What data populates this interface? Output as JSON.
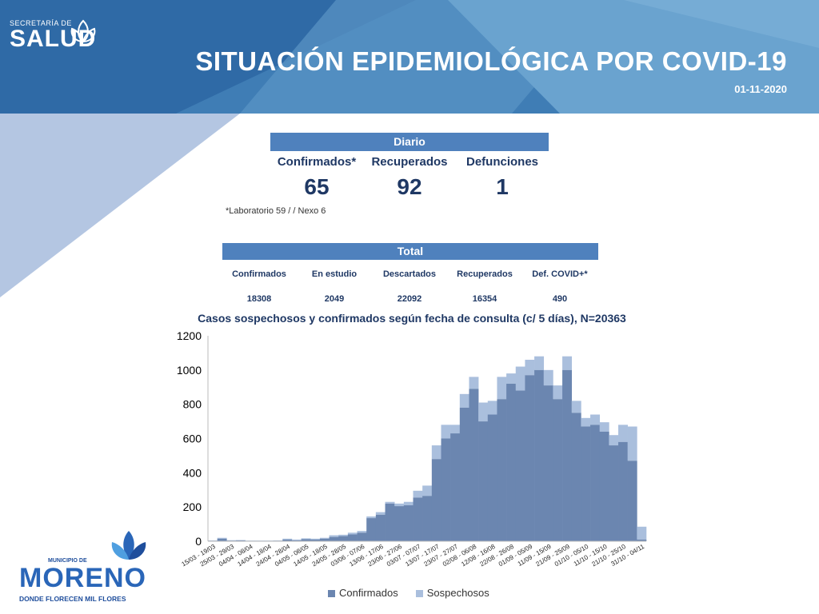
{
  "header": {
    "brand_top": "SECRETARÍA DE",
    "brand_name": "SALUD",
    "title": "SITUACIÓN EPIDEMIOLÓGICA POR COVID-19",
    "date": "01-11-2020"
  },
  "colors": {
    "header_blue": "#4a86b8",
    "section_bar": "#4f81bd",
    "confirmados": "#6b86b0",
    "sospechosos": "#aabfdd",
    "text_dark": "#1f3864"
  },
  "daily": {
    "heading": "Diario",
    "cols": [
      {
        "label": "Confirmados*",
        "value": "65"
      },
      {
        "label": "Recuperados",
        "value": "92"
      },
      {
        "label": "Defunciones",
        "value": "1"
      }
    ],
    "footnote": "*Laboratorio 59 / / Nexo 6"
  },
  "total": {
    "heading": "Total",
    "cols": [
      {
        "label": "Confirmados",
        "value": "18308"
      },
      {
        "label": "En estudio",
        "value": "2049"
      },
      {
        "label": "Descartados",
        "value": "22092"
      },
      {
        "label": "Recuperados",
        "value": "16354"
      },
      {
        "label": "Def. COVID+*",
        "value": "490"
      }
    ]
  },
  "chart_data": {
    "type": "area",
    "stacked": true,
    "title": "Casos sospechosos y confirmados según fecha de consulta (c/ 5 días), N=20363",
    "xlabel": "",
    "ylabel": "",
    "ylim": [
      0,
      1200
    ],
    "yticks": [
      0,
      200,
      400,
      600,
      800,
      1000,
      1200
    ],
    "categories": [
      "15/03 - 19/03",
      "20/03 - 24/03",
      "25/03 - 29/03",
      "30/03 - 03/04",
      "04/04 - 08/04",
      "09/04 - 13/04",
      "14/04 - 18/04",
      "19/04 - 23/04",
      "24/04 - 28/04",
      "29/04 - 03/05",
      "04/05 - 08/05",
      "09/05 - 13/05",
      "14/05 - 18/05",
      "19/05 - 23/05",
      "24/05 - 28/05",
      "29/05 - 02/06",
      "03/06 - 07/06",
      "08/06 - 12/06",
      "13/06 - 17/06",
      "18/06 - 22/06",
      "23/06 - 27/06",
      "28/06 - 02/07",
      "03/07 - 07/07",
      "08/07 - 12/07",
      "13/07 - 17/07",
      "18/07 - 22/07",
      "23/07 - 27/07",
      "28/07 - 01/08",
      "02/08 - 06/08",
      "07/08 - 11/08",
      "12/08 - 16/08",
      "17/08 - 21/08",
      "22/08 - 26/08",
      "27/08 - 31/08",
      "01/09 - 05/09",
      "06/09 - 10/09",
      "11/09 - 15/09",
      "16/09 - 20/09",
      "21/09 - 25/09",
      "26/09 - 30/09",
      "01/10 - 05/10",
      "06/10 - 10/10",
      "11/10 - 15/10",
      "16/10 - 20/10",
      "21/10 - 25/10",
      "26/10 - 30/10",
      "31/10 - 04/11"
    ],
    "xtick_labels_shown": [
      "15/03 - 19/03",
      "25/03 - 29/03",
      "04/04 - 08/04",
      "14/04 - 18/04",
      "24/04 - 28/04",
      "04/05 - 08/05",
      "14/05 - 18/05",
      "24/05 - 28/05",
      "03/06 - 07/06",
      "13/06 - 17/06",
      "23/06 - 27/06",
      "03/07 - 07/07",
      "13/07 - 17/07",
      "23/07 - 27/07",
      "02/08 - 06/08",
      "12/08 - 16/08",
      "22/08 - 26/08",
      "01/09 - 05/09",
      "11/09 - 15/09",
      "21/09 - 25/09",
      "01/10 - 05/10",
      "11/10 - 15/10",
      "21/10 - 25/10",
      "31/10 - 04/11"
    ],
    "series": [
      {
        "name": "Confirmados",
        "values": [
          3,
          15,
          4,
          5,
          2,
          2,
          2,
          3,
          10,
          5,
          12,
          10,
          15,
          25,
          30,
          40,
          50,
          135,
          155,
          220,
          205,
          210,
          255,
          265,
          480,
          600,
          630,
          780,
          890,
          700,
          740,
          830,
          920,
          880,
          970,
          1000,
          910,
          830,
          1000,
          750,
          670,
          680,
          640,
          560,
          580,
          470,
          10
        ]
      },
      {
        "name": "Sospechosos",
        "values": [
          2,
          5,
          2,
          2,
          2,
          2,
          2,
          2,
          5,
          5,
          5,
          5,
          5,
          10,
          8,
          10,
          10,
          10,
          15,
          10,
          15,
          20,
          40,
          60,
          80,
          80,
          50,
          80,
          70,
          110,
          80,
          130,
          60,
          140,
          90,
          80,
          90,
          80,
          80,
          70,
          50,
          60,
          55,
          60,
          100,
          200,
          75
        ]
      }
    ],
    "legend": [
      "Confirmados",
      "Sospechosos"
    ],
    "legend_position": "bottom",
    "grid": false
  },
  "footer_logo": {
    "top": "MUNICIPIO DE",
    "name": "MORENO",
    "slogan": "DONDE FLORECEN MIL FLORES"
  }
}
